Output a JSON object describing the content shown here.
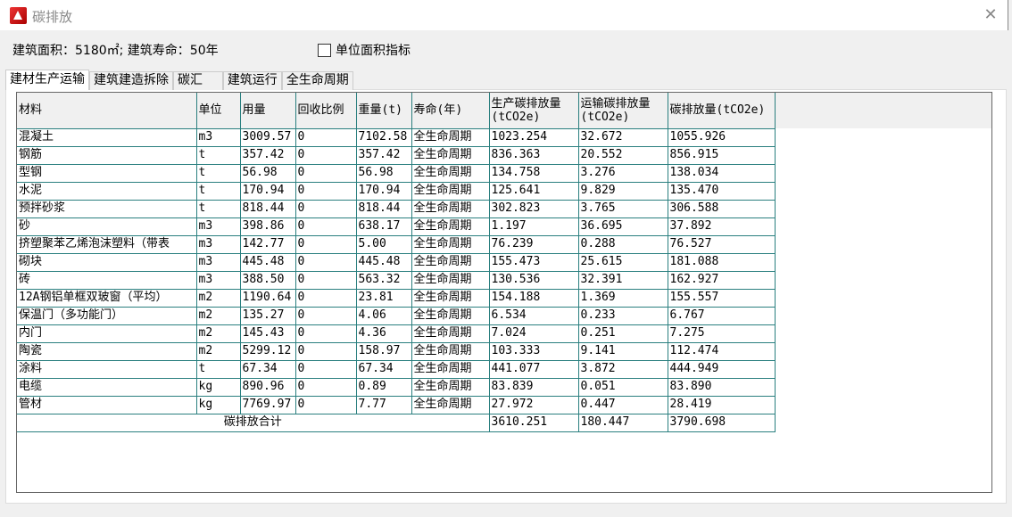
{
  "window": {
    "title": "碳排放",
    "close_icon": "close-icon",
    "logo_icon": "autocad-logo-icon"
  },
  "info": {
    "text": "建筑面积：5180㎡; 建筑寿命：50年"
  },
  "unit_area_checkbox": {
    "label": "单位面积指标",
    "checked": false
  },
  "tabs": [
    {
      "label": "建材生产运输",
      "active": true
    },
    {
      "label": "建筑建造拆除"
    },
    {
      "label": "碳汇    "
    },
    {
      "label": "建筑运行"
    },
    {
      "label": "全生命周期"
    }
  ],
  "table": {
    "headers": [
      "材料",
      "单位",
      "用量",
      "回收比例",
      "重量(t)",
      "寿命(年)",
      "生产碳排放量\n(tCO2e)",
      "运输碳排放量\n(tCO2e)",
      "碳排放量(tCO2e)"
    ],
    "rows": [
      [
        "混凝土",
        "m3",
        "3009.57",
        "0",
        "7102.58",
        "全生命周期",
        "1023.254",
        "32.672",
        "1055.926"
      ],
      [
        "钢筋",
        "t",
        "357.42",
        "0",
        "357.42",
        "全生命周期",
        "836.363",
        "20.552",
        "856.915"
      ],
      [
        "型钢",
        "t",
        "56.98",
        "0",
        "56.98",
        "全生命周期",
        "134.758",
        "3.276",
        "138.034"
      ],
      [
        "水泥",
        "t",
        "170.94",
        "0",
        "170.94",
        "全生命周期",
        "125.641",
        "9.829",
        "135.470"
      ],
      [
        "预拌砂浆",
        "t",
        "818.44",
        "0",
        "818.44",
        "全生命周期",
        "302.823",
        "3.765",
        "306.588"
      ],
      [
        "砂",
        "m3",
        "398.86",
        "0",
        "638.17",
        "全生命周期",
        "1.197",
        "36.695",
        "37.892"
      ],
      [
        "挤塑聚苯乙烯泡沫塑料（带表",
        "m3",
        "142.77",
        "0",
        "5.00",
        "全生命周期",
        "76.239",
        "0.288",
        "76.527"
      ],
      [
        "砌块",
        "m3",
        "445.48",
        "0",
        "445.48",
        "全生命周期",
        "155.473",
        "25.615",
        "181.088"
      ],
      [
        "砖",
        "m3",
        "388.50",
        "0",
        "563.32",
        "全生命周期",
        "130.536",
        "32.391",
        "162.927"
      ],
      [
        "12A钢铝单框双玻窗（平均）",
        "m2",
        "1190.64",
        "0",
        "23.81",
        "全生命周期",
        "154.188",
        "1.369",
        "155.557"
      ],
      [
        "保温门（多功能门）",
        "m2",
        "135.27",
        "0",
        "4.06",
        "全生命周期",
        "6.534",
        "0.233",
        "6.767"
      ],
      [
        "内门",
        "m2",
        "145.43",
        "0",
        "4.36",
        "全生命周期",
        "7.024",
        "0.251",
        "7.275"
      ],
      [
        "陶瓷",
        "m2",
        "5299.12",
        "0",
        "158.97",
        "全生命周期",
        "103.333",
        "9.141",
        "112.474"
      ],
      [
        "涂料",
        "t",
        "67.34",
        "0",
        "67.34",
        "全生命周期",
        "441.077",
        "3.872",
        "444.949"
      ],
      [
        "电缆",
        "kg",
        "890.96",
        "0",
        "0.89",
        "全生命周期",
        "83.839",
        "0.051",
        "83.890"
      ],
      [
        "管材",
        "kg",
        "7769.97",
        "0",
        "7.77",
        "全生命周期",
        "27.972",
        "0.447",
        "28.419"
      ]
    ],
    "total": {
      "label": "碳排放合计",
      "production": "3610.251",
      "transport": "180.447",
      "emission": "3790.698"
    }
  },
  "colors": {
    "grid_line": "#2a7f7f",
    "header_bg": "#f0f0f0"
  }
}
